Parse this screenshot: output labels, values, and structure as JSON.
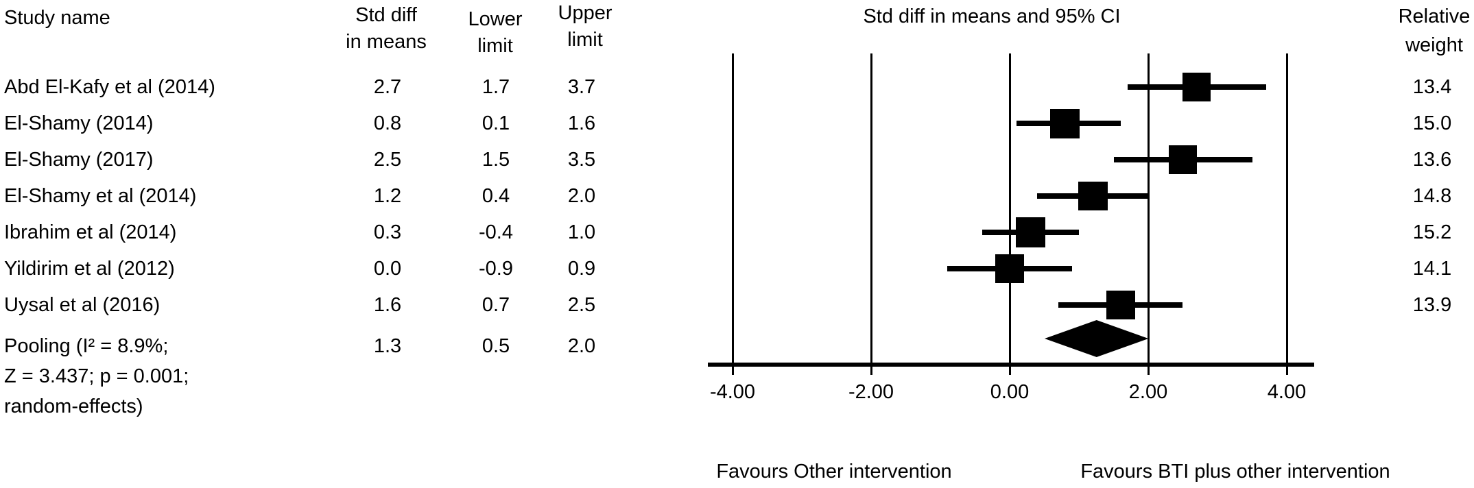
{
  "chart_data": {
    "type": "forest",
    "title": "Std diff in means and 95% CI",
    "columns": {
      "study": "Study name",
      "mean_line1": "Std diff",
      "mean_line2": "in means",
      "lower_line1": "Lower",
      "lower_line2": "limit",
      "upper_line1": "Upper",
      "upper_line2": "limit",
      "weight_line1": "Relative",
      "weight_line2": "weight"
    },
    "studies": [
      {
        "name": "Abd El-Kafy et al (2014)",
        "mean": 2.7,
        "lower": 1.7,
        "upper": 3.7,
        "weight": 13.4
      },
      {
        "name": "El-Shamy (2014)",
        "mean": 0.8,
        "lower": 0.1,
        "upper": 1.6,
        "weight": 15.0
      },
      {
        "name": "El-Shamy (2017)",
        "mean": 2.5,
        "lower": 1.5,
        "upper": 3.5,
        "weight": 13.6
      },
      {
        "name": "El-Shamy et al (2014)",
        "mean": 1.2,
        "lower": 0.4,
        "upper": 2.0,
        "weight": 14.8
      },
      {
        "name": "Ibrahim et al (2014)",
        "mean": 0.3,
        "lower": -0.4,
        "upper": 1.0,
        "weight": 15.2
      },
      {
        "name": "Yildirim et al (2012)",
        "mean": 0.0,
        "lower": -0.9,
        "upper": 0.9,
        "weight": 14.1
      },
      {
        "name": "Uysal et al (2016)",
        "mean": 1.6,
        "lower": 0.7,
        "upper": 2.5,
        "weight": 13.9
      }
    ],
    "pooled": {
      "name_lines": [
        "Pooling (I² = 8.9%;",
        "Z = 3.437; p = 0.001;",
        "random-effects)"
      ],
      "mean": 1.3,
      "lower": 0.5,
      "upper": 2.0
    },
    "axis": {
      "xlim": [
        -4,
        4
      ],
      "ticks": [
        -4,
        -2,
        0,
        2,
        4
      ],
      "tick_labels": [
        "-4.00",
        "-2.00",
        "0.00",
        "2.00",
        "4.00"
      ],
      "grid": "vertical-lines-at-ticks"
    },
    "footer": {
      "left": "Favours Other intervention",
      "right": "Favours BTI plus other intervention"
    },
    "colors": {
      "ink": "#000000",
      "background": "#ffffff"
    }
  }
}
